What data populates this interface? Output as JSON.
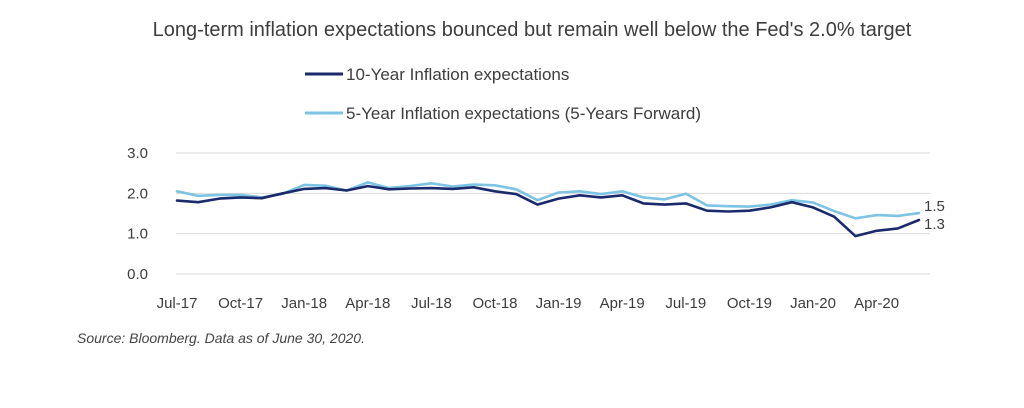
{
  "chart_data": {
    "type": "line",
    "title": "Long-term inflation expectations bounced but remain well below the Fed's 2.0% target",
    "xlabel": "",
    "ylabel": "",
    "ylim": [
      0,
      3
    ],
    "yticks": [
      "0.0",
      "1.0",
      "2.0",
      "3.0"
    ],
    "categories": [
      "Jul-17",
      "Aug-17",
      "Sep-17",
      "Oct-17",
      "Nov-17",
      "Dec-17",
      "Jan-18",
      "Feb-18",
      "Mar-18",
      "Apr-18",
      "May-18",
      "Jun-18",
      "Jul-18",
      "Aug-18",
      "Sep-18",
      "Oct-18",
      "Nov-18",
      "Dec-18",
      "Jan-19",
      "Feb-19",
      "Mar-19",
      "Apr-19",
      "May-19",
      "Jun-19",
      "Jul-19",
      "Aug-19",
      "Sep-19",
      "Oct-19",
      "Nov-19",
      "Dec-19",
      "Jan-20",
      "Feb-20",
      "Mar-20",
      "Apr-20",
      "May-20",
      "Jun-20"
    ],
    "xtick_labels": [
      "Jul-17",
      "Oct-17",
      "Jan-18",
      "Apr-18",
      "Jul-18",
      "Oct-18",
      "Jan-19",
      "Apr-19",
      "Jul-19",
      "Oct-19",
      "Jan-20",
      "Apr-20"
    ],
    "series": [
      {
        "name": "10-Year Inflation expectations",
        "color": "#1a2a6c",
        "values": [
          1.82,
          1.78,
          1.87,
          1.9,
          1.88,
          2.0,
          2.11,
          2.13,
          2.07,
          2.18,
          2.1,
          2.12,
          2.13,
          2.11,
          2.15,
          2.05,
          1.98,
          1.72,
          1.87,
          1.95,
          1.9,
          1.95,
          1.75,
          1.72,
          1.75,
          1.57,
          1.55,
          1.57,
          1.65,
          1.78,
          1.65,
          1.42,
          0.94,
          1.07,
          1.13,
          1.34
        ],
        "end_label": "1.3"
      },
      {
        "name": "5-Year Inflation expectations (5-Years Forward)",
        "color": "#7dc3e3",
        "values": [
          2.05,
          1.94,
          1.96,
          1.96,
          1.9,
          1.99,
          2.21,
          2.19,
          2.07,
          2.27,
          2.13,
          2.18,
          2.25,
          2.17,
          2.22,
          2.2,
          2.1,
          1.83,
          2.02,
          2.05,
          1.98,
          2.05,
          1.9,
          1.85,
          1.99,
          1.7,
          1.68,
          1.67,
          1.72,
          1.83,
          1.77,
          1.56,
          1.38,
          1.46,
          1.44,
          1.51
        ],
        "end_label": "1.5"
      }
    ],
    "legend_position": "top-center",
    "source": "Source: Bloomberg. Data as of June 30, 2020."
  }
}
